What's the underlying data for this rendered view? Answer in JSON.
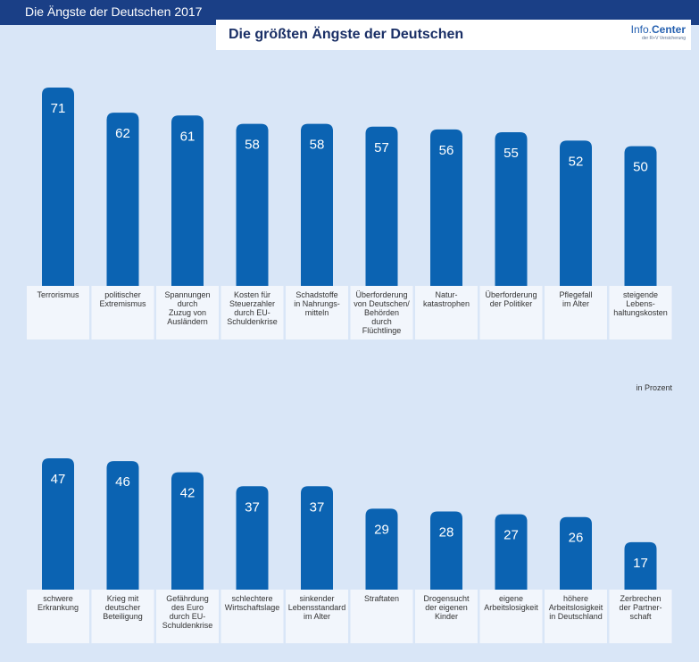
{
  "header": {
    "top_title": "Die Ängste der Deutschen 2017",
    "main_title": "Die größten Ängste der Deutschen",
    "logo_prefix": "Info.",
    "logo_strong": "Center",
    "logo_sub": "der R+V Versicherung"
  },
  "unit_label": "in Prozent",
  "colors": {
    "bar": "#0b63b2",
    "background": "#d9e6f7",
    "header_bar": "#1a3f86",
    "label_box": "#f2f6fc"
  },
  "chart_data": [
    {
      "type": "bar",
      "title": "",
      "xlabel": "",
      "ylabel": "",
      "unit": "in Prozent",
      "categories": [
        "Terrorismus",
        "politischer Extremismus",
        "Spannungen durch Zuzug von Ausländern",
        "Kosten für Steuerzahler durch EU-Schuldenkrise",
        "Schadstoffe in Nahrungs- mitteln",
        "Überforderung von Deutschen/ Behörden durch Flüchtlinge",
        "Natur- katastrophen",
        "Überforderung der Politiker",
        "Pflegefall im Alter",
        "steigende Lebens- haltungskosten"
      ],
      "category_lines": [
        [
          "Terrorismus"
        ],
        [
          "politischer",
          "Extremismus"
        ],
        [
          "Spannungen",
          "durch",
          "Zuzug von",
          "Ausländern"
        ],
        [
          "Kosten für",
          "Steuerzahler",
          "durch EU-",
          "Schuldenkrise"
        ],
        [
          "Schadstoffe",
          "in Nahrungs-",
          "mitteln"
        ],
        [
          "Überforderung",
          "von Deutschen/",
          "Behörden",
          "durch",
          "Flüchtlinge"
        ],
        [
          "Natur-",
          "katastrophen"
        ],
        [
          "Überforderung",
          "der Politiker"
        ],
        [
          "Pflegefall",
          "im Alter"
        ],
        [
          "steigende",
          "Lebens-",
          "haltungskosten"
        ]
      ],
      "values": [
        71,
        62,
        61,
        58,
        58,
        57,
        56,
        55,
        52,
        50
      ]
    },
    {
      "type": "bar",
      "title": "",
      "xlabel": "",
      "ylabel": "",
      "unit": "in Prozent",
      "categories": [
        "schwere Erkrankung",
        "Krieg mit deutscher Beteiligung",
        "Gefährdung des Euro durch EU-Schuldenkrise",
        "schlechtere Wirtschaftslage",
        "sinkender Lebensstandard im Alter",
        "Straftaten",
        "Drogensucht der eigenen Kinder",
        "eigene Arbeitslosigkeit",
        "höhere Arbeitslosigkeit in Deutschland",
        "Zerbrechen der Partner- schaft"
      ],
      "category_lines": [
        [
          "schwere",
          "Erkrankung"
        ],
        [
          "Krieg mit",
          "deutscher",
          "Beteiligung"
        ],
        [
          "Gefährdung",
          "des Euro",
          "durch EU-",
          "Schuldenkrise"
        ],
        [
          "schlechtere",
          "Wirtschaftslage"
        ],
        [
          "sinkender",
          "Lebensstandard",
          "im Alter"
        ],
        [
          "Straftaten"
        ],
        [
          "Drogensucht",
          "der eigenen",
          "Kinder"
        ],
        [
          "eigene",
          "Arbeitslosigkeit"
        ],
        [
          "höhere",
          "Arbeitslosigkeit",
          "in Deutschland"
        ],
        [
          "Zerbrechen",
          "der Partner-",
          "schaft"
        ]
      ],
      "values": [
        47,
        46,
        42,
        37,
        37,
        29,
        28,
        27,
        26,
        17
      ]
    }
  ]
}
